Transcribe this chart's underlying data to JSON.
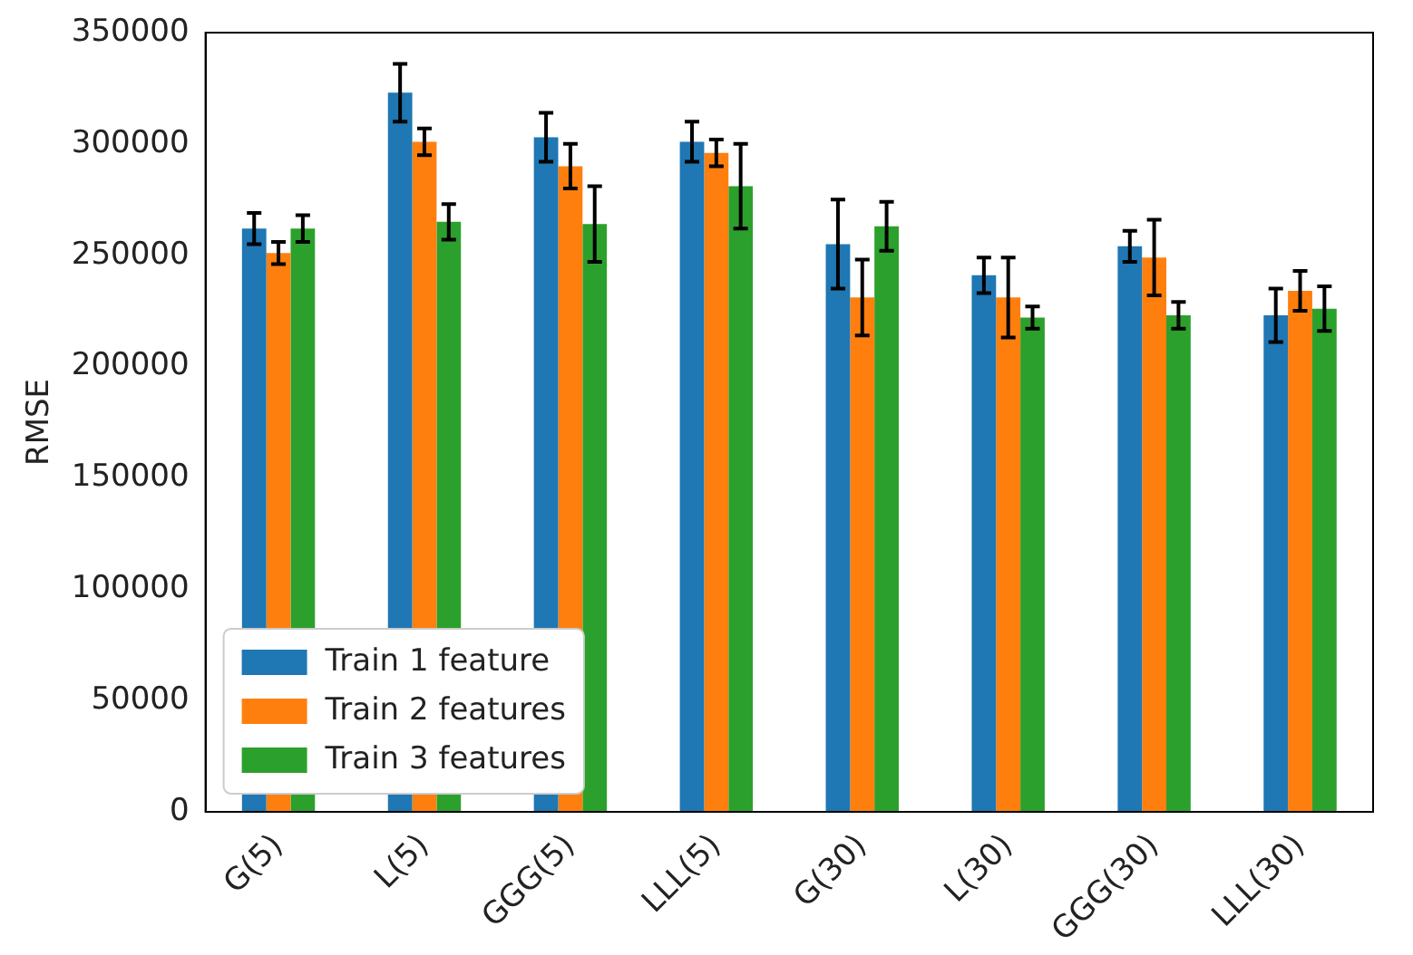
{
  "chart_data": {
    "type": "bar",
    "ylabel": "RMSE",
    "categories": [
      "G(5)",
      "L(5)",
      "GGG(5)",
      "LLL(5)",
      "G(30)",
      "L(30)",
      "GGG(30)",
      "LLL(30)"
    ],
    "series": [
      {
        "name": "Train 1 feature",
        "color": "#1f77b4",
        "values": [
          262000,
          323000,
          303000,
          301000,
          255000,
          241000,
          254000,
          223000
        ],
        "errors": [
          7000,
          13000,
          11000,
          9000,
          20000,
          8000,
          7000,
          12000
        ]
      },
      {
        "name": "Train 2 features",
        "color": "#ff7f0e",
        "values": [
          251000,
          301000,
          290000,
          296000,
          231000,
          231000,
          249000,
          234000
        ],
        "errors": [
          5000,
          6000,
          10000,
          6000,
          17000,
          18000,
          17000,
          9000
        ]
      },
      {
        "name": "Train 3 features",
        "color": "#2ca02c",
        "values": [
          262000,
          265000,
          264000,
          281000,
          263000,
          222000,
          223000,
          226000
        ],
        "errors": [
          6000,
          8000,
          17000,
          19000,
          11000,
          5000,
          6000,
          10000
        ]
      }
    ],
    "ylim": [
      0,
      350000
    ],
    "yticks": [
      0,
      50000,
      100000,
      150000,
      200000,
      250000,
      300000,
      350000
    ],
    "grid": false,
    "legend": "bottom left"
  }
}
